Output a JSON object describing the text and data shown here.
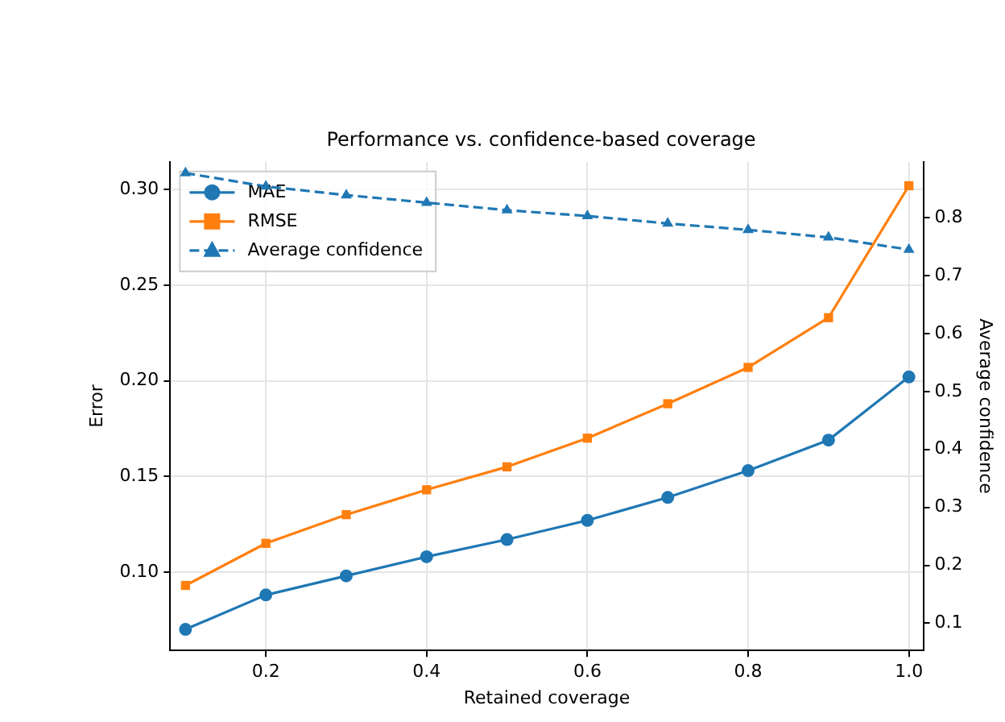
{
  "chart_data": {
    "type": "line",
    "title": "Performance vs. confidence-based coverage",
    "xlabel": "Retained coverage",
    "ylabel": "Error",
    "y2label": "Average confidence",
    "x": [
      0.1,
      0.2,
      0.3,
      0.4,
      0.5,
      0.6,
      0.7,
      0.8,
      0.9,
      1.0
    ],
    "series": [
      {
        "name": "MAE",
        "color": "#1f77b4",
        "marker": "circle",
        "line_style": "solid",
        "values": [
          0.07,
          0.088,
          0.098,
          0.108,
          0.117,
          0.127,
          0.139,
          0.153,
          0.169,
          0.202
        ]
      },
      {
        "name": "RMSE",
        "color": "#ff7f0e",
        "marker": "square",
        "line_style": "solid",
        "values": [
          0.093,
          0.115,
          0.13,
          0.143,
          0.155,
          0.17,
          0.188,
          0.207,
          0.233,
          0.302
        ]
      },
      {
        "name": "Average confidence",
        "color": "#1f77b4",
        "marker": "triangle",
        "line_style": "dashed",
        "axis": "y2",
        "values": [
          0.877,
          0.854,
          0.839,
          0.826,
          0.813,
          0.803,
          0.79,
          0.779,
          0.766,
          0.745
        ]
      }
    ],
    "xlim": [
      0.081,
      1.018
    ],
    "xticks": [
      0.2,
      0.4,
      0.6,
      0.8,
      {
        "value": 1.0,
        "label": "1.0"
      }
    ],
    "ylim": [
      0.059,
      0.3145
    ],
    "yticks": [
      {
        "value": 0.1,
        "label": "0.10"
      },
      0.15,
      {
        "value": 0.2,
        "label": "0.20"
      },
      0.25,
      {
        "value": 0.3,
        "label": "0.30"
      }
    ],
    "y2lim": [
      0.053,
      0.8965
    ],
    "y2ticks": [
      0.1,
      0.2,
      0.3,
      0.4,
      0.5,
      0.6,
      0.7,
      0.8
    ],
    "grid": true,
    "legend": "top left"
  }
}
